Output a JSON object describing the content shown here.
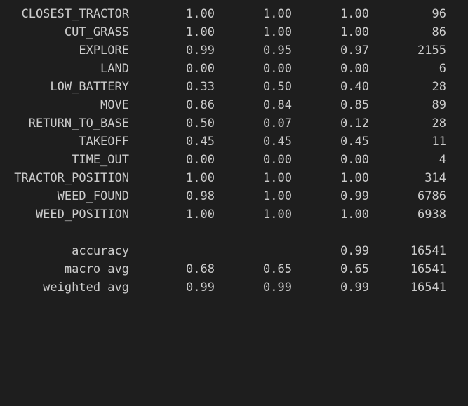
{
  "report": {
    "rows": [
      {
        "label": "CLOSEST_TRACTOR",
        "precision": "1.00",
        "recall": "1.00",
        "f1": "1.00",
        "support": "96"
      },
      {
        "label": "CUT_GRASS",
        "precision": "1.00",
        "recall": "1.00",
        "f1": "1.00",
        "support": "86"
      },
      {
        "label": "EXPLORE",
        "precision": "0.99",
        "recall": "0.95",
        "f1": "0.97",
        "support": "2155"
      },
      {
        "label": "LAND",
        "precision": "0.00",
        "recall": "0.00",
        "f1": "0.00",
        "support": "6"
      },
      {
        "label": "LOW_BATTERY",
        "precision": "0.33",
        "recall": "0.50",
        "f1": "0.40",
        "support": "28"
      },
      {
        "label": "MOVE",
        "precision": "0.86",
        "recall": "0.84",
        "f1": "0.85",
        "support": "89"
      },
      {
        "label": "RETURN_TO_BASE",
        "precision": "0.50",
        "recall": "0.07",
        "f1": "0.12",
        "support": "28"
      },
      {
        "label": "TAKEOFF",
        "precision": "0.45",
        "recall": "0.45",
        "f1": "0.45",
        "support": "11"
      },
      {
        "label": "TIME_OUT",
        "precision": "0.00",
        "recall": "0.00",
        "f1": "0.00",
        "support": "4"
      },
      {
        "label": "TRACTOR_POSITION",
        "precision": "1.00",
        "recall": "1.00",
        "f1": "1.00",
        "support": "314"
      },
      {
        "label": "WEED_FOUND",
        "precision": "0.98",
        "recall": "1.00",
        "f1": "0.99",
        "support": "6786"
      },
      {
        "label": "WEED_POSITION",
        "precision": "1.00",
        "recall": "1.00",
        "f1": "1.00",
        "support": "6938"
      }
    ],
    "summary": [
      {
        "label": "accuracy",
        "precision": "",
        "recall": "",
        "f1": "0.99",
        "support": "16541"
      },
      {
        "label": "macro avg",
        "precision": "0.68",
        "recall": "0.65",
        "f1": "0.65",
        "support": "16541"
      },
      {
        "label": "weighted avg",
        "precision": "0.99",
        "recall": "0.99",
        "f1": "0.99",
        "support": "16541"
      }
    ]
  }
}
